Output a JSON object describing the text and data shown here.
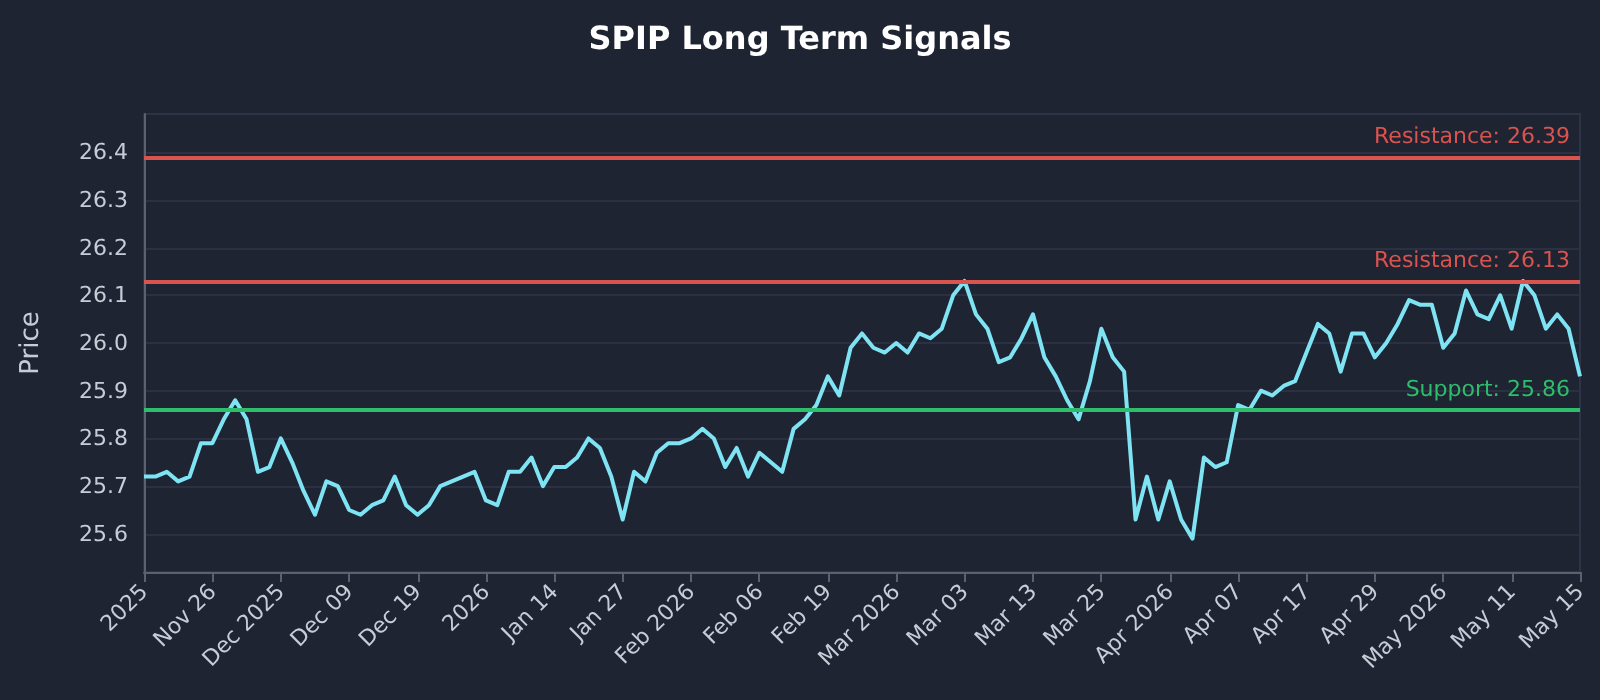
{
  "chart_data": {
    "type": "line",
    "title": "SPIP Long Term Signals",
    "ylabel": "Price",
    "categories": [
      "2025",
      null,
      null,
      null,
      null,
      null,
      "Nov 26",
      null,
      null,
      null,
      null,
      null,
      "Dec 2025",
      null,
      null,
      null,
      null,
      null,
      "Dec 09",
      null,
      null,
      null,
      null,
      null,
      "Dec 19",
      null,
      null,
      null,
      null,
      null,
      "2026",
      null,
      null,
      null,
      null,
      null,
      "Jan 14",
      null,
      null,
      null,
      null,
      null,
      "Jan 27",
      null,
      null,
      null,
      null,
      null,
      "Feb 2026",
      null,
      null,
      null,
      null,
      null,
      "Feb 06",
      null,
      null,
      null,
      null,
      null,
      "Feb 19",
      null,
      null,
      null,
      null,
      null,
      "Mar 2026",
      null,
      null,
      null,
      null,
      null,
      "Mar 03",
      null,
      null,
      null,
      null,
      null,
      "Mar 13",
      null,
      null,
      null,
      null,
      null,
      "Mar 25",
      null,
      null,
      null,
      null,
      null,
      "Apr 2026",
      null,
      null,
      null,
      null,
      null,
      "Apr 07",
      null,
      null,
      null,
      null,
      null,
      "Apr 17",
      null,
      null,
      null,
      null,
      null,
      "Apr 29",
      null,
      null,
      null,
      null,
      null,
      "May 2026",
      null,
      null,
      null,
      null,
      null,
      "May 11",
      null,
      null,
      null,
      null,
      null,
      "May 15"
    ],
    "series": [
      {
        "color": "#7ee3f2",
        "values": [
          25.72,
          25.72,
          25.73,
          25.71,
          25.72,
          25.79,
          25.79,
          25.84,
          25.88,
          25.84,
          25.73,
          25.74,
          25.8,
          25.75,
          25.69,
          25.64,
          25.71,
          25.7,
          25.65,
          25.64,
          25.66,
          25.67,
          25.72,
          25.66,
          25.64,
          25.66,
          25.7,
          25.71,
          25.72,
          25.73,
          25.67,
          25.66,
          25.73,
          25.73,
          25.76,
          25.7,
          25.74,
          25.74,
          25.76,
          25.8,
          25.78,
          25.72,
          25.63,
          25.73,
          25.71,
          25.77,
          25.79,
          25.79,
          25.8,
          25.82,
          25.8,
          25.74,
          25.78,
          25.72,
          25.77,
          25.75,
          25.73,
          25.82,
          25.84,
          25.87,
          25.93,
          25.89,
          25.99,
          26.02,
          25.99,
          25.98,
          26.0,
          25.98,
          26.02,
          26.01,
          26.03,
          26.1,
          26.13,
          26.06,
          26.03,
          25.96,
          25.97,
          26.01,
          26.06,
          25.97,
          25.93,
          25.88,
          25.84,
          25.92,
          26.03,
          25.97,
          25.94,
          25.63,
          25.72,
          25.63,
          25.71,
          25.63,
          25.59,
          25.76,
          25.74,
          25.75,
          25.87,
          25.86,
          25.9,
          25.89,
          25.91,
          25.92,
          25.98,
          26.04,
          26.02,
          25.94,
          26.02,
          26.02,
          25.97,
          26.0,
          26.04,
          26.09,
          26.08,
          26.08,
          25.99,
          26.02,
          26.11,
          26.06,
          26.05,
          26.1,
          26.03,
          26.13,
          26.1,
          26.03,
          26.06,
          26.03,
          25.93
        ]
      }
    ],
    "ylim": [
      25.52,
      26.48
    ],
    "yticks": [
      25.6,
      25.7,
      25.8,
      25.9,
      {
        "value": 26.0,
        "label": "26.0"
      },
      26.1,
      26.2,
      26.3,
      26.4
    ],
    "ref_lines": [
      {
        "axis": "y",
        "value": 26.39,
        "label": "Resistance: 26.39",
        "color": "#d9534f"
      },
      {
        "axis": "y",
        "value": 26.13,
        "label": "Resistance: 26.13",
        "color": "#d9534f"
      },
      {
        "axis": "y",
        "value": 25.86,
        "label": "Support: 25.86",
        "color": "#2ebd6b"
      }
    ],
    "grid": "y",
    "marker": "none",
    "line_style": "solid"
  }
}
